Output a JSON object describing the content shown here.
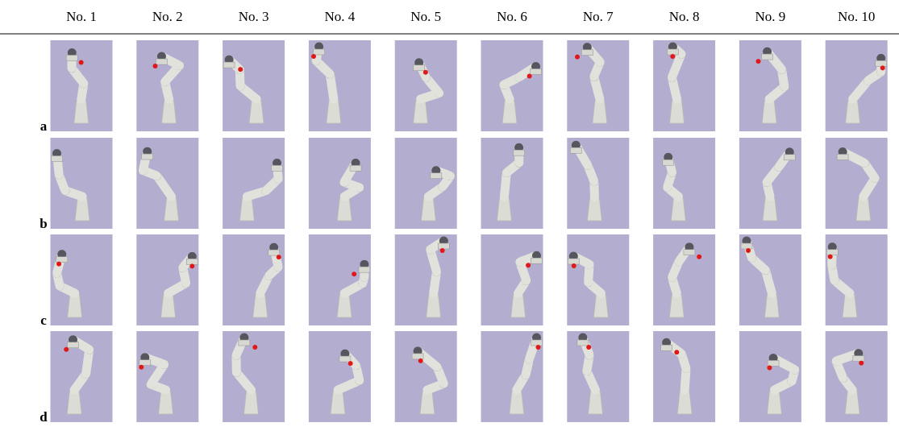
{
  "table": {
    "columns": [
      "No. 1",
      "No. 2",
      "No. 3",
      "No. 4",
      "No. 5",
      "No. 6",
      "No. 7",
      "No. 8",
      "No. 9",
      "No. 10"
    ],
    "rows": [
      "a",
      "b",
      "c",
      "d"
    ]
  }
}
